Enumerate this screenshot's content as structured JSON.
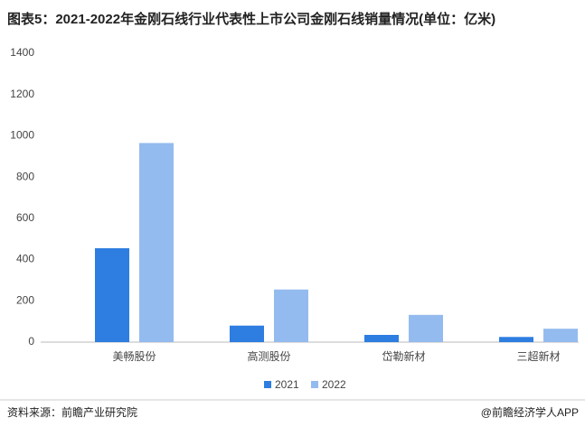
{
  "chart_data": {
    "type": "bar",
    "title": "图表5：2021-2022年金刚石线行业代表性上市公司金刚石线销量情况(单位：亿米)",
    "categories": [
      "美畅股份",
      "高测股份",
      "岱勒新材",
      "三超新材"
    ],
    "series": [
      {
        "name": "2021",
        "color": "#2e7de1",
        "values": [
          455,
          80,
          35,
          25
        ]
      },
      {
        "name": "2022",
        "color": "#94bbef",
        "values": [
          965,
          255,
          132,
          65
        ]
      }
    ],
    "ylim": [
      0,
      1400
    ],
    "yticks": [
      0,
      200,
      400,
      600,
      800,
      1000,
      1200,
      1400
    ],
    "grid": false,
    "source": "资料来源：前瞻产业研究院",
    "credit": "@前瞻经济学人APP"
  }
}
